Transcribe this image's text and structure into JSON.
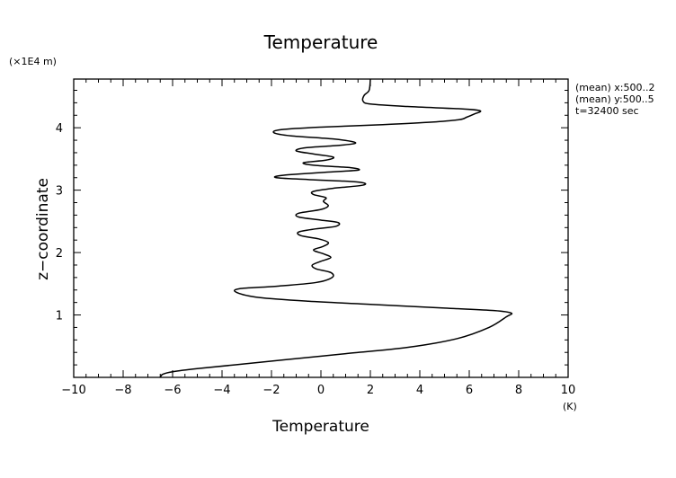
{
  "chart_data": {
    "type": "line",
    "title": "Temperature",
    "xlabel": "Temperature",
    "ylabel": "z−coordinate",
    "x_unit": "(K)",
    "y_unit": "(×1E4 m)",
    "xlim": [
      -10,
      10
    ],
    "ylim": [
      0,
      4.78
    ],
    "xticks": [
      -10,
      -8,
      -6,
      -4,
      -2,
      0,
      2,
      4,
      6,
      8,
      10
    ],
    "xtick_labels": [
      "−10",
      "−8",
      "−6",
      "−4",
      "−2",
      "0",
      "2",
      "4",
      "6",
      "8",
      "10"
    ],
    "yticks": [
      1,
      2,
      3,
      4
    ],
    "ytick_labels": [
      "1",
      "2",
      "3",
      "4"
    ],
    "grid": false,
    "annotations": [
      "(mean) x:500..2",
      "(mean) y:500..5",
      "t=32400 sec"
    ],
    "series": [
      {
        "color": "#000000",
        "points": [
          [
            -6.5,
            0.0
          ],
          [
            -6.4,
            0.05
          ],
          [
            -6.0,
            0.09
          ],
          [
            -5.0,
            0.14
          ],
          [
            -3.5,
            0.2
          ],
          [
            -1.5,
            0.28
          ],
          [
            1.0,
            0.38
          ],
          [
            3.5,
            0.48
          ],
          [
            5.5,
            0.62
          ],
          [
            6.8,
            0.8
          ],
          [
            7.5,
            0.97
          ],
          [
            7.7,
            1.03
          ],
          [
            7.0,
            1.07
          ],
          [
            5.0,
            1.11
          ],
          [
            2.0,
            1.17
          ],
          [
            -0.5,
            1.22
          ],
          [
            -2.5,
            1.28
          ],
          [
            -3.4,
            1.36
          ],
          [
            -3.3,
            1.42
          ],
          [
            -1.8,
            1.46
          ],
          [
            -0.2,
            1.52
          ],
          [
            0.45,
            1.6
          ],
          [
            0.4,
            1.68
          ],
          [
            -0.2,
            1.74
          ],
          [
            -0.35,
            1.8
          ],
          [
            0.0,
            1.86
          ],
          [
            0.4,
            1.92
          ],
          [
            0.1,
            1.98
          ],
          [
            -0.3,
            2.04
          ],
          [
            0.1,
            2.1
          ],
          [
            0.3,
            2.16
          ],
          [
            -0.1,
            2.22
          ],
          [
            -0.8,
            2.27
          ],
          [
            -0.9,
            2.33
          ],
          [
            -0.2,
            2.38
          ],
          [
            0.6,
            2.42
          ],
          [
            0.7,
            2.48
          ],
          [
            0.0,
            2.52
          ],
          [
            -0.9,
            2.57
          ],
          [
            -0.9,
            2.63
          ],
          [
            0.0,
            2.69
          ],
          [
            0.3,
            2.75
          ],
          [
            0.1,
            2.82
          ],
          [
            0.2,
            2.88
          ],
          [
            -0.3,
            2.93
          ],
          [
            -0.3,
            2.98
          ],
          [
            0.5,
            3.03
          ],
          [
            1.7,
            3.08
          ],
          [
            1.5,
            3.13
          ],
          [
            -0.5,
            3.17
          ],
          [
            -1.8,
            3.2
          ],
          [
            -1.5,
            3.24
          ],
          [
            0.3,
            3.29
          ],
          [
            1.5,
            3.32
          ],
          [
            1.2,
            3.36
          ],
          [
            -0.3,
            3.4
          ],
          [
            -0.7,
            3.44
          ],
          [
            0.2,
            3.48
          ],
          [
            0.5,
            3.53
          ],
          [
            -0.3,
            3.58
          ],
          [
            -1.0,
            3.63
          ],
          [
            -0.6,
            3.68
          ],
          [
            0.8,
            3.72
          ],
          [
            1.4,
            3.76
          ],
          [
            0.5,
            3.82
          ],
          [
            -1.2,
            3.87
          ],
          [
            -1.9,
            3.92
          ],
          [
            -1.6,
            3.97
          ],
          [
            0.0,
            4.01
          ],
          [
            2.5,
            4.05
          ],
          [
            4.5,
            4.09
          ],
          [
            5.6,
            4.13
          ],
          [
            5.9,
            4.17
          ],
          [
            6.2,
            4.22
          ],
          [
            6.45,
            4.27
          ],
          [
            5.8,
            4.3
          ],
          [
            3.5,
            4.34
          ],
          [
            2.0,
            4.38
          ],
          [
            1.7,
            4.43
          ],
          [
            1.75,
            4.52
          ],
          [
            1.95,
            4.6
          ],
          [
            2.0,
            4.78
          ]
        ]
      }
    ]
  }
}
